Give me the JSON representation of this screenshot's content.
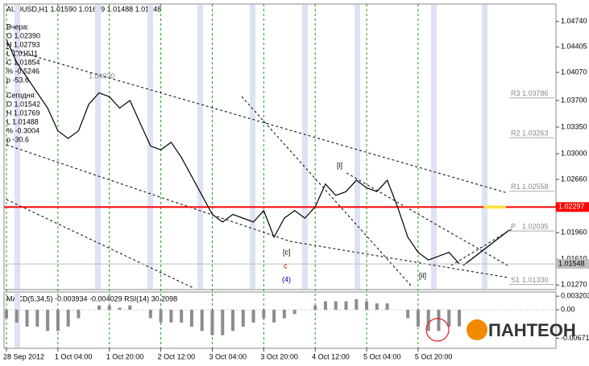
{
  "chart_data": {
    "type": "line",
    "title": "AUDUSD,H1  1.01590 1.01619 1.01488 1.01548",
    "categories": [
      "28 Sep 2012",
      null,
      null,
      null,
      null,
      "1 Oct 04:00",
      null,
      null,
      null,
      null,
      "1 Oct 20:00",
      null,
      null,
      null,
      null,
      "2 Oct 12:00",
      null,
      null,
      null,
      null,
      "3 Oct 04:00",
      null,
      null,
      null,
      null,
      "3 Oct 20:00",
      null,
      null,
      null,
      null,
      "4 Oct 12:00",
      null,
      null,
      null,
      null,
      "5 Oct 04:00",
      null,
      null,
      null,
      null,
      "5 Oct 20:00",
      null,
      null,
      null,
      null
    ],
    "series": [
      {
        "name": "AUDUSD,H1",
        "color": "#000000",
        "values": [
          1.045,
          1.042,
          1.04,
          1.038,
          1.036,
          1.033,
          1.032,
          1.033,
          1.0365,
          1.038,
          1.0375,
          1.036,
          1.037,
          1.034,
          1.031,
          1.0305,
          1.0315,
          1.0295,
          1.027,
          1.0245,
          1.022,
          1.021,
          1.022,
          1.0215,
          1.021,
          1.0225,
          1.019,
          1.0215,
          1.0225,
          1.0215,
          1.023,
          1.026,
          1.0245,
          1.025,
          1.0265,
          1.0255,
          1.025,
          1.0265,
          1.023,
          1.019,
          1.017,
          1.016,
          1.0165,
          1.017,
          1.0155
        ]
      }
    ],
    "ylim": [
      1.0121,
      1.0497
    ],
    "yticks": [
      {
        "value": 1.0474,
        "label": "1.04740"
      },
      {
        "value": 1.04405,
        "label": "1.04405"
      },
      {
        "value": 1.0407,
        "label": "1.04070"
      },
      {
        "value": 1.037,
        "label": "1.03700"
      },
      {
        "value": 1.0335,
        "label": "1.03350"
      },
      {
        "value": 1.03,
        "label": "1.03000"
      },
      {
        "value": 1.0266,
        "label": "1.02660"
      },
      {
        "value": 1.0196,
        "label": "1.01960"
      },
      {
        "value": 1.0161,
        "label": "1.01610"
      },
      {
        "value": 1.0127,
        "label": "1.01270"
      }
    ],
    "level": {
      "value": 1.02297,
      "label": "1.02297",
      "color": "#ff0000"
    },
    "last_price": {
      "value": 1.01548,
      "label": "1.01548"
    },
    "pivots": [
      {
        "name": "R3",
        "value": 1.03786,
        "label": "1.03786"
      },
      {
        "name": "R2",
        "value": 1.03263,
        "label": "1.03263"
      },
      {
        "name": "R1",
        "value": 1.02558,
        "label": "1.02558"
      },
      {
        "name": "P",
        "value": 1.02035,
        "label": "1.02035"
      },
      {
        "name": "S1",
        "value": 1.0133,
        "label": "1.01330"
      }
    ],
    "info": [
      "Вчера:",
      "O 1.02390",
      "H 1.02793",
      "L 1.01511",
      "C 1.01854",
      "% -0.5246",
      "p -53.6",
      "Сегодня:",
      "O 1.01542",
      "H 1.01769",
      "L 1.01488",
      "% -0.3004",
      "p -30.6"
    ],
    "annotations": [
      "1.04030",
      "[i]",
      "[ii]",
      "[c]",
      "c",
      "(4)"
    ],
    "macd": {
      "title": "MACD(5,34,5) -0.003934 -0.004029 RSI(14) 30.2098",
      "color": "#8c8c8c",
      "values": [
        -0.002,
        -0.003,
        -0.004,
        -0.004,
        -0.005,
        -0.005,
        -0.004,
        -0.002,
        0,
        0.001,
        0.001,
        0.0005,
        0.001,
        0,
        -0.002,
        -0.003,
        -0.003,
        -0.003,
        -0.004,
        -0.005,
        -0.006,
        -0.006,
        -0.005,
        -0.004,
        -0.003,
        -0.002,
        -0.003,
        -0.002,
        -0.001,
        0,
        0.001,
        0.002,
        0.002,
        0.002,
        0.0025,
        0.002,
        0.0015,
        0.0015,
        0,
        -0.002,
        -0.004,
        -0.005,
        -0.005,
        -0.004,
        -0.0039
      ],
      "ylim": [
        -0.0089,
        0.004
      ],
      "yticks": [
        0.003203,
        {
          "value": 0,
          "label": "0.00"
        },
        {
          "value": -0.00671,
          "label": "-0.00671"
        }
      ]
    },
    "logo": "ПАНТЕОН"
  }
}
